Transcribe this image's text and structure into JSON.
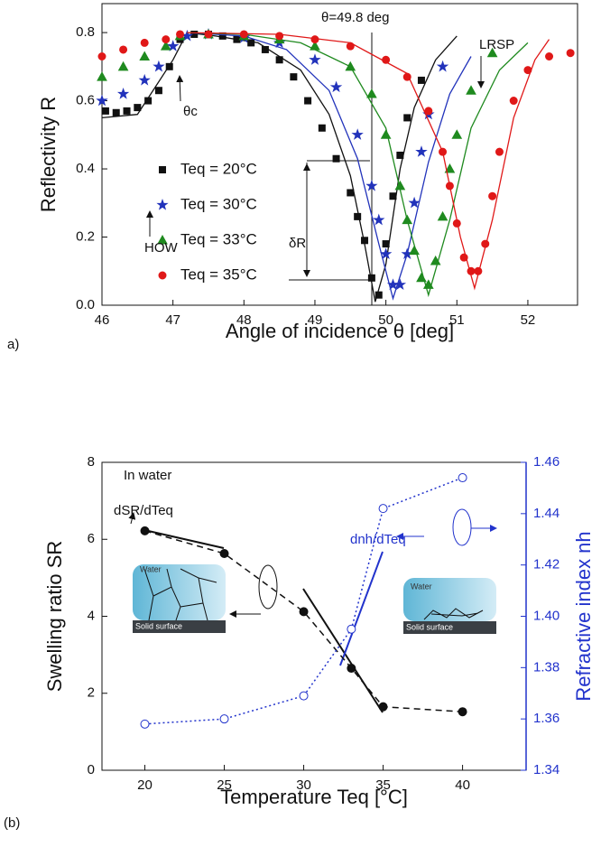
{
  "chart_data": [
    {
      "type": "scatter",
      "panel_label": "a)",
      "x_label": "Angle of incidence θ [deg]",
      "y_label": "Reflectivity R",
      "xlim": [
        46,
        52.7
      ],
      "ylim": [
        0,
        0.885
      ],
      "xticks": [
        46,
        47,
        48,
        49,
        50,
        51,
        52
      ],
      "yticks": [
        {
          "value": 0,
          "label": "0.0"
        },
        0.2,
        0.4,
        0.6,
        0.8
      ],
      "annotations": [
        "θ=49.8 deg",
        "LRSP",
        "HOW",
        "θc",
        "δR"
      ],
      "series": [
        {
          "name": "Teq = 20°C",
          "color": "#111111",
          "marker": "square",
          "x": [
            46.05,
            46.2,
            46.35,
            46.5,
            46.65,
            46.8,
            46.95,
            47.1,
            47.3,
            47.5,
            47.7,
            47.9,
            48.1,
            48.3,
            48.5,
            48.7,
            48.9,
            49.1,
            49.3,
            49.5,
            49.6,
            49.7,
            49.8,
            49.9,
            50.0,
            50.1,
            50.2,
            50.3,
            50.5
          ],
          "values": [
            0.57,
            0.565,
            0.57,
            0.58,
            0.6,
            0.63,
            0.7,
            0.78,
            0.795,
            0.795,
            0.79,
            0.78,
            0.77,
            0.75,
            0.72,
            0.67,
            0.6,
            0.52,
            0.43,
            0.33,
            0.26,
            0.19,
            0.08,
            0.03,
            0.18,
            0.32,
            0.44,
            0.55,
            0.66
          ],
          "fit_x": [
            46.0,
            46.5,
            47.0,
            47.2,
            47.6,
            48.2,
            48.8,
            49.2,
            49.5,
            49.7,
            49.85,
            50.0,
            50.2,
            50.4,
            50.7,
            51.0
          ],
          "fit_values": [
            0.55,
            0.56,
            0.72,
            0.8,
            0.79,
            0.77,
            0.69,
            0.56,
            0.38,
            0.18,
            0.01,
            0.12,
            0.4,
            0.58,
            0.72,
            0.79
          ]
        },
        {
          "name": "Teq = 30°C",
          "color": "#2233bb",
          "marker": "star",
          "x": [
            46.0,
            46.3,
            46.6,
            46.8,
            47.0,
            47.2,
            47.5,
            48.0,
            48.5,
            49.0,
            49.3,
            49.6,
            49.8,
            49.9,
            50.0,
            50.1,
            50.2,
            50.3,
            50.4,
            50.5,
            50.6,
            50.8
          ],
          "values": [
            0.6,
            0.62,
            0.66,
            0.7,
            0.76,
            0.79,
            0.795,
            0.785,
            0.77,
            0.72,
            0.64,
            0.5,
            0.35,
            0.25,
            0.15,
            0.06,
            0.06,
            0.15,
            0.3,
            0.45,
            0.56,
            0.7
          ],
          "fit_x": [
            47.2,
            48.0,
            48.6,
            49.2,
            49.6,
            49.9,
            50.1,
            50.3,
            50.6,
            50.9,
            51.2
          ],
          "fit_values": [
            0.8,
            0.79,
            0.75,
            0.63,
            0.43,
            0.18,
            0.02,
            0.15,
            0.42,
            0.62,
            0.73
          ]
        },
        {
          "name": "Teq = 33°C",
          "color": "#1f8a1f",
          "marker": "triangle",
          "x": [
            46.0,
            46.3,
            46.6,
            46.9,
            47.1,
            47.5,
            48.0,
            48.5,
            49.0,
            49.5,
            49.8,
            50.0,
            50.2,
            50.3,
            50.4,
            50.5,
            50.6,
            50.7,
            50.8,
            50.9,
            51.0,
            51.2,
            51.5
          ],
          "values": [
            0.67,
            0.7,
            0.73,
            0.76,
            0.79,
            0.795,
            0.79,
            0.78,
            0.76,
            0.7,
            0.62,
            0.5,
            0.35,
            0.25,
            0.16,
            0.08,
            0.06,
            0.13,
            0.26,
            0.4,
            0.5,
            0.63,
            0.74
          ],
          "fit_x": [
            47.2,
            48.0,
            48.8,
            49.5,
            50.0,
            50.3,
            50.6,
            50.9,
            51.2,
            51.6,
            52.0
          ],
          "fit_values": [
            0.8,
            0.795,
            0.77,
            0.7,
            0.52,
            0.25,
            0.03,
            0.25,
            0.52,
            0.69,
            0.77
          ]
        },
        {
          "name": "Teq = 35°C",
          "color": "#e01818",
          "marker": "circle",
          "x": [
            46.0,
            46.3,
            46.6,
            46.9,
            47.1,
            47.5,
            48.0,
            48.5,
            49.0,
            49.5,
            50.0,
            50.3,
            50.6,
            50.8,
            50.9,
            51.0,
            51.1,
            51.2,
            51.3,
            51.4,
            51.5,
            51.6,
            51.8,
            52.0,
            52.3,
            52.6
          ],
          "values": [
            0.73,
            0.75,
            0.77,
            0.78,
            0.795,
            0.795,
            0.795,
            0.79,
            0.78,
            0.76,
            0.72,
            0.67,
            0.57,
            0.45,
            0.35,
            0.24,
            0.14,
            0.1,
            0.1,
            0.18,
            0.32,
            0.45,
            0.6,
            0.69,
            0.73,
            0.74
          ],
          "fit_x": [
            47.2,
            48.5,
            49.5,
            50.3,
            50.8,
            51.05,
            51.25,
            51.5,
            51.8,
            52.1,
            52.3
          ],
          "fit_values": [
            0.8,
            0.795,
            0.77,
            0.68,
            0.45,
            0.2,
            0.05,
            0.25,
            0.55,
            0.72,
            0.78
          ]
        }
      ]
    },
    {
      "type": "line",
      "panel_label": "(b)",
      "x_label": "Temperature Teq [°C]",
      "y_label": "Swelling ratio SR",
      "y2_label": "Refractive index nh",
      "xlim": [
        17.3,
        44
      ],
      "ylim": [
        0,
        8
      ],
      "y2lim": [
        1.34,
        1.46
      ],
      "xticks": [
        20,
        25,
        30,
        35,
        40
      ],
      "yticks": [
        0,
        2,
        4,
        6,
        8
      ],
      "y2ticks": [
        1.34,
        1.36,
        1.38,
        {
          "value": 1.4,
          "label": "1.40"
        },
        1.42,
        1.44,
        1.46
      ],
      "annotations": [
        "In water",
        "dSR/dTeq",
        "dnh/dTeq"
      ],
      "inset_labels": [
        "Water",
        "Solid surface",
        "Water",
        "Solid surface"
      ],
      "series": [
        {
          "color": "#111111",
          "style": "dashed",
          "marker": "filled-circle",
          "x": [
            20,
            25,
            30,
            33,
            35,
            40
          ],
          "values": [
            6.22,
            5.63,
            4.12,
            2.65,
            1.65,
            1.52
          ]
        },
        {
          "color": "#2233cc",
          "style": "dotted",
          "marker": "open-circle",
          "axis": "y2",
          "x": [
            20,
            25,
            30,
            33,
            35,
            40
          ],
          "values": [
            1.358,
            1.36,
            1.369,
            1.395,
            1.442,
            1.454
          ]
        }
      ]
    }
  ]
}
